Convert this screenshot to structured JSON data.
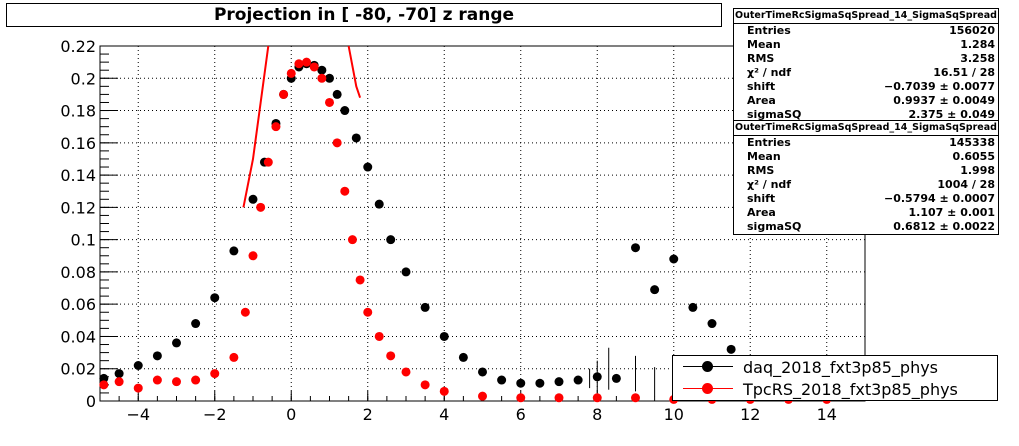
{
  "title": "Projection in [ -80, -70] z range",
  "stats_boxes": [
    {
      "name": "OuterTimeRcSigmaSqSpread_14_SigmaSqSpread",
      "rows": [
        {
          "label": "Entries",
          "value": "156020"
        },
        {
          "label": "Mean",
          "value": "1.284"
        },
        {
          "label": "RMS",
          "value": "3.258"
        },
        {
          "label": "χ² / ndf",
          "value": "16.51 / 28"
        },
        {
          "label": "shift",
          "value": "−0.7039 ± 0.0077"
        },
        {
          "label": "Area",
          "value": "0.9937 ± 0.0049"
        },
        {
          "label": "sigmaSQ",
          "value": "2.375 ± 0.049"
        }
      ]
    },
    {
      "name": "OuterTimeRcSigmaSqSpread_14_SigmaSqSpread",
      "rows": [
        {
          "label": "Entries",
          "value": "145338"
        },
        {
          "label": "Mean",
          "value": "0.6055"
        },
        {
          "label": "RMS",
          "value": "1.998"
        },
        {
          "label": "χ² / ndf",
          "value": "1004 / 28"
        },
        {
          "label": "shift",
          "value": "−0.5794 ± 0.0007"
        },
        {
          "label": "Area",
          "value": "1.107 ± 0.001"
        },
        {
          "label": "sigmaSQ",
          "value": "0.6812 ± 0.0022"
        }
      ]
    }
  ],
  "legend": [
    {
      "label": "daq_2018_fxt3p85_phys",
      "color": "#000000"
    },
    {
      "label": "TpcRS_2018_fxt3p85_phys",
      "color": "#ff0000"
    }
  ],
  "chart_data": {
    "type": "scatter",
    "xlim": [
      -5,
      15
    ],
    "ylim": [
      0,
      0.22
    ],
    "x_ticks": [
      {
        "value": -4,
        "label": "−4"
      },
      {
        "value": -2,
        "label": "−2"
      },
      {
        "value": 0,
        "label": "0"
      },
      {
        "value": 2,
        "label": "2"
      },
      {
        "value": 4,
        "label": "4"
      },
      {
        "value": 6,
        "label": "6"
      },
      {
        "value": 8,
        "label": "8"
      },
      {
        "value": 10,
        "label": "10"
      },
      {
        "value": 12,
        "label": "12"
      },
      {
        "value": 14,
        "label": "14"
      }
    ],
    "y_ticks": [
      {
        "value": 0,
        "label": "0"
      },
      {
        "value": 0.02,
        "label": "0.02"
      },
      {
        "value": 0.04,
        "label": "0.04"
      },
      {
        "value": 0.06,
        "label": "0.06"
      },
      {
        "value": 0.08,
        "label": "0.08"
      },
      {
        "value": 0.1,
        "label": "0.1"
      },
      {
        "value": 0.12,
        "label": "0.12"
      },
      {
        "value": 0.14,
        "label": "0.14"
      },
      {
        "value": 0.16,
        "label": "0.16"
      },
      {
        "value": 0.18,
        "label": "0.18"
      },
      {
        "value": 0.2,
        "label": "0.2"
      },
      {
        "value": 0.22,
        "label": "0.22"
      }
    ],
    "grid": true,
    "series": [
      {
        "name": "daq_2018_fxt3p85_phys",
        "color": "#000000",
        "x": [
          -4.9,
          -4.5,
          -4.0,
          -3.5,
          -3.0,
          -2.5,
          -2.0,
          -1.5,
          -1.0,
          -0.7,
          -0.4,
          -0.2,
          0.0,
          0.2,
          0.4,
          0.6,
          0.8,
          1.0,
          1.2,
          1.4,
          1.7,
          2.0,
          2.3,
          2.6,
          3.0,
          3.5,
          4.0,
          4.5,
          5.0,
          5.5,
          6.0,
          6.5,
          7.0,
          7.5,
          8.0,
          8.5,
          9.0,
          9.5,
          10.0,
          10.5,
          11.0,
          11.5
        ],
        "y": [
          0.014,
          0.017,
          0.022,
          0.028,
          0.036,
          0.048,
          0.064,
          0.093,
          0.125,
          0.148,
          0.172,
          0.19,
          0.2,
          0.207,
          0.209,
          0.208,
          0.205,
          0.2,
          0.19,
          0.18,
          0.163,
          0.145,
          0.122,
          0.1,
          0.08,
          0.058,
          0.04,
          0.027,
          0.018,
          0.013,
          0.011,
          0.011,
          0.012,
          0.013,
          0.015,
          0.014,
          0.095,
          0.069,
          0.088,
          0.058,
          0.048,
          0.032
        ]
      },
      {
        "name": "TpcRS_2018_fxt3p85_phys",
        "color": "#ff0000",
        "x": [
          -4.9,
          -4.5,
          -4.0,
          -3.5,
          -3.0,
          -2.5,
          -2.0,
          -1.5,
          -1.2,
          -1.0,
          -0.8,
          -0.6,
          -0.4,
          -0.2,
          0.0,
          0.2,
          0.4,
          0.6,
          0.8,
          1.0,
          1.2,
          1.4,
          1.6,
          1.8,
          2.0,
          2.3,
          2.6,
          3.0,
          3.5,
          4.0,
          5.0,
          6.0,
          7.0,
          8.0,
          9.0,
          10.0,
          11.0,
          12.0,
          13.0,
          14.0
        ],
        "y": [
          0.01,
          0.012,
          0.008,
          0.013,
          0.012,
          0.013,
          0.017,
          0.027,
          0.055,
          0.09,
          0.12,
          0.148,
          0.17,
          0.19,
          0.203,
          0.209,
          0.21,
          0.207,
          0.2,
          0.185,
          0.16,
          0.13,
          0.1,
          0.075,
          0.055,
          0.04,
          0.028,
          0.018,
          0.01,
          0.006,
          0.003,
          0.002,
          0.002,
          0.002,
          0.002,
          0.001,
          0.001,
          0.001,
          0.001,
          0.001
        ]
      }
    ],
    "fit": {
      "color": "#ff0000",
      "x": [
        -1.25,
        -1.0,
        -0.8,
        -0.6,
        1.5,
        1.7,
        1.8
      ],
      "y": [
        0.12,
        0.15,
        0.185,
        0.22,
        0.22,
        0.195,
        0.188
      ]
    },
    "error_bars": {
      "color": "#000000",
      "x": [
        7.8,
        8.0,
        8.3,
        9.0,
        9.5
      ],
      "y": [
        0.014,
        0.015,
        0.02,
        0.017,
        0.012
      ],
      "err": [
        0.006,
        0.01,
        0.013,
        0.011,
        0.009
      ]
    }
  }
}
